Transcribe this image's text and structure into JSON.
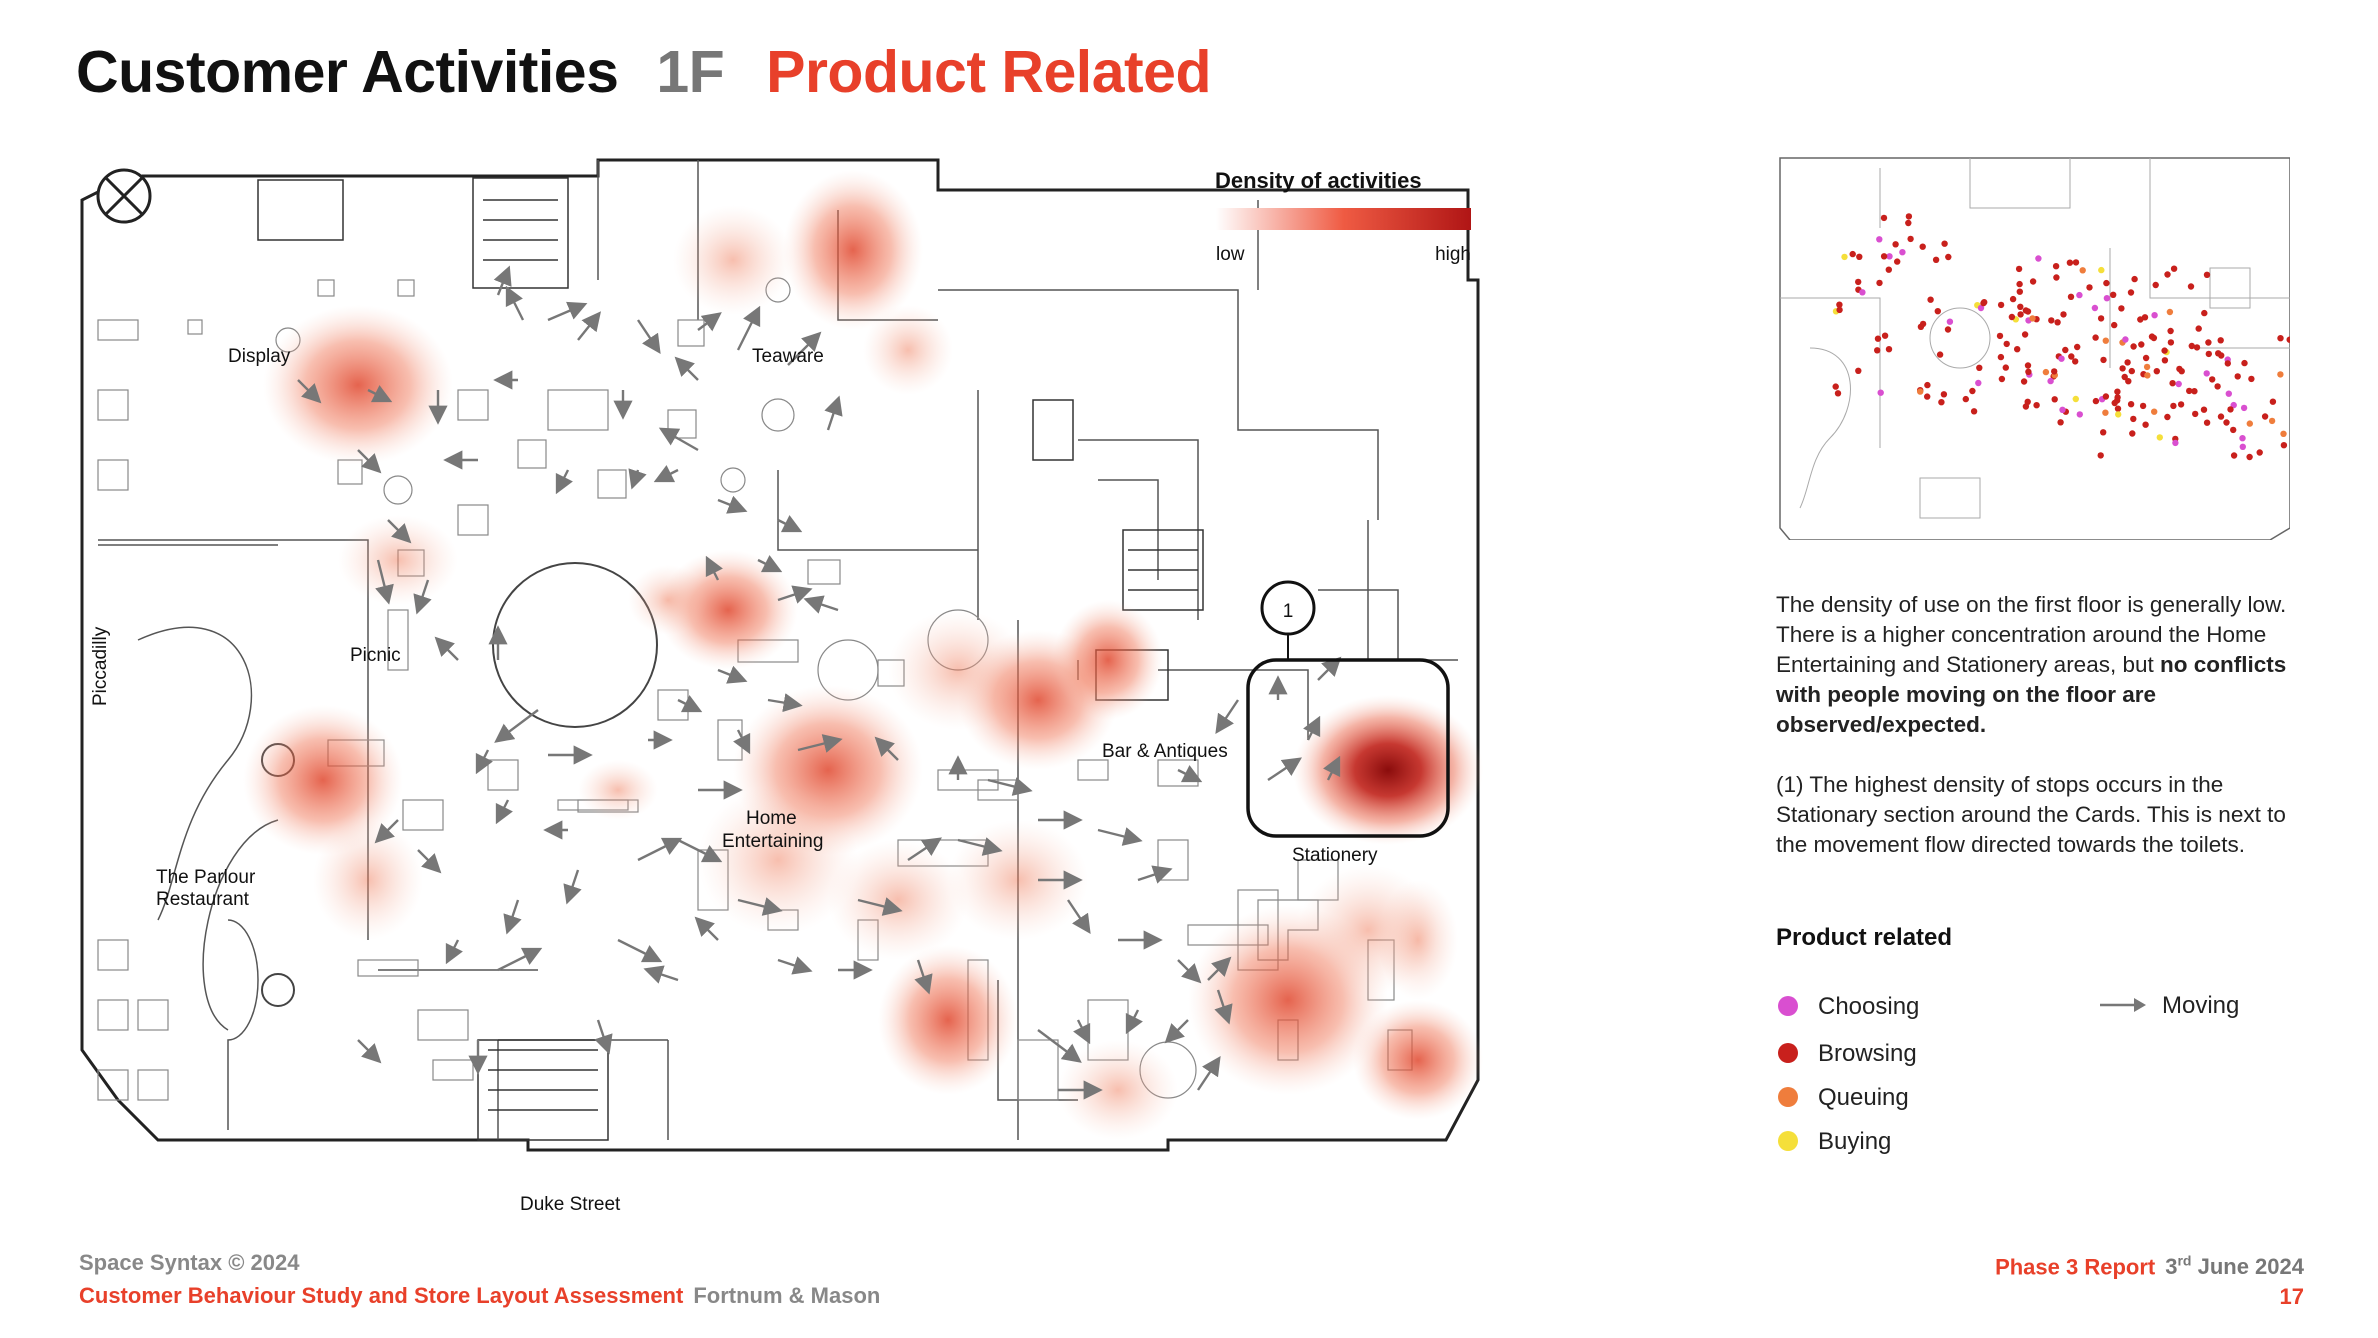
{
  "title": {
    "main": "Customer Activities",
    "floor": "1F",
    "subject": "Product Related"
  },
  "map": {
    "density_legend": {
      "title": "Density of activities",
      "low": "low",
      "high": "high"
    },
    "labels": {
      "display": "Display",
      "teaware": "Teaware",
      "picnic": "Picnic",
      "piccadilly": "Piccadilly",
      "parlour_1": "The Parlour",
      "parlour_2": "Restaurant",
      "home_1": "Home",
      "home_2": "Entertaining",
      "bar": "Bar & Antiques",
      "stationery": "Stationery",
      "duke": "Duke Street",
      "marker": "1"
    },
    "colors": {
      "heat_high": "#a81414",
      "heat_mid": "#e0482f",
      "heat_low": "#f7c4b4"
    }
  },
  "description": {
    "p1_start": "The density of use on the first floor is generally low. There is a higher concentration around the Home Entertaining and Stationery areas, but ",
    "p1_bold": "no conflicts with people moving on the floor are observed/expected.",
    "p2": "(1) The highest density of stops occurs in the Stationary section around the Cards. This is next to the movement flow directed towards the toilets."
  },
  "legend": {
    "title": "Product related",
    "items": [
      {
        "label": "Choosing",
        "color": "#d94fd0"
      },
      {
        "label": "Browsing",
        "color": "#c8201c"
      },
      {
        "label": "Queuing",
        "color": "#ef7d3c"
      },
      {
        "label": "Buying",
        "color": "#f5df3a"
      }
    ],
    "moving_label": "Moving"
  },
  "footer": {
    "copyright": "Space Syntax © 2024",
    "study": "Customer Behaviour Study and Store Layout Assessment",
    "client": "Fortnum & Mason",
    "report": "Phase 3 Report",
    "date_day": "3",
    "date_suffix": "rd",
    "date_rest": " June 2024",
    "page": "17"
  }
}
